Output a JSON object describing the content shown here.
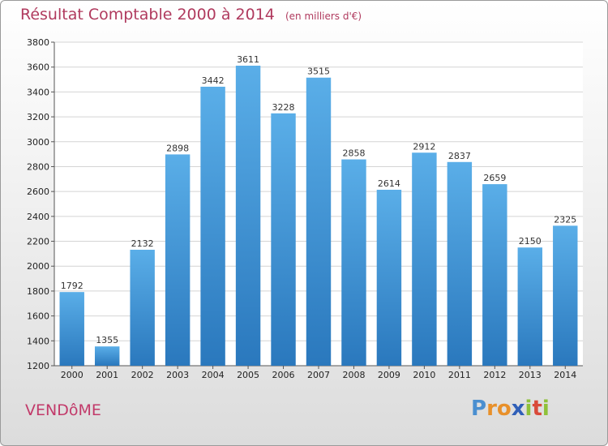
{
  "chart_data": {
    "type": "bar",
    "title": "Résultat Comptable 2000 à 2014",
    "subtitle": "(en milliers d'€)",
    "categories": [
      "2000",
      "2001",
      "2002",
      "2003",
      "2004",
      "2005",
      "2006",
      "2007",
      "2008",
      "2009",
      "2010",
      "2011",
      "2012",
      "2013",
      "2014"
    ],
    "values": [
      1792,
      1355,
      2132,
      2898,
      3442,
      3611,
      3228,
      3515,
      2858,
      2614,
      2912,
      2837,
      2659,
      2150,
      2325
    ],
    "ylim": [
      1200,
      3800
    ],
    "yticks": [
      "1200",
      "1400",
      "1600",
      "1800",
      "2000",
      "2200",
      "2400",
      "2600",
      "2800",
      "3000",
      "3200",
      "3400",
      "3600",
      "3800"
    ],
    "ytick_values": [
      1200,
      1400,
      1600,
      1800,
      2000,
      2200,
      2400,
      2600,
      2800,
      3000,
      3200,
      3400,
      3600,
      3800
    ],
    "xlabel": "",
    "ylabel": "",
    "grid": true,
    "colors": {
      "bar_top": "#5aaee8",
      "bar_bottom": "#2a78bd",
      "title": "#b03a5e"
    }
  },
  "city": "VENDôME",
  "brand": {
    "letters": [
      "P",
      "r",
      "o",
      "x",
      "i",
      "t",
      "i"
    ],
    "colors": [
      "#4a8fd0",
      "#e8902a",
      "#e8902a",
      "#2f5fb8",
      "#8fc13a",
      "#d94a3a",
      "#8fc13a"
    ]
  }
}
